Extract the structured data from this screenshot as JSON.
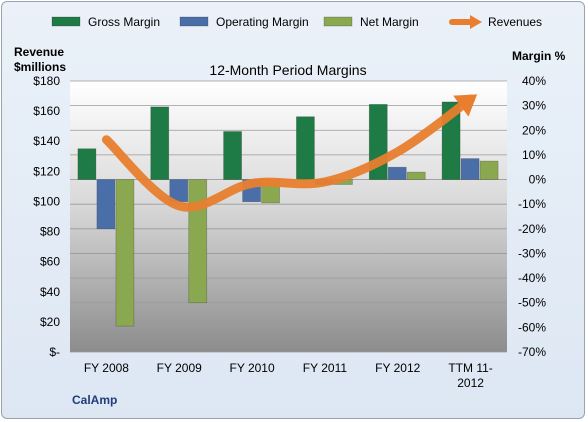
{
  "chart_data": {
    "type": "bar",
    "title": "12-Month Period Margins",
    "company": "CalAmp",
    "left_axis_title": [
      "Revenue",
      "$millions"
    ],
    "right_axis_title": "Margin %",
    "categories": [
      [
        "FY 2008"
      ],
      [
        "FY 2009"
      ],
      [
        "FY 2010"
      ],
      [
        "FY 2011"
      ],
      [
        "FY 2012"
      ],
      [
        "TTM 11-",
        "2012"
      ]
    ],
    "left_ylim": [
      0,
      180
    ],
    "left_ticks": [
      "$180",
      "$160",
      "$140",
      "$120",
      "$100",
      "$80",
      "$60",
      "$40",
      "$20",
      "$-"
    ],
    "right_ylim": [
      -70,
      40
    ],
    "right_ticks": [
      "40%",
      "30%",
      "20%",
      "10%",
      "0%",
      "-10%",
      "-20%",
      "-30%",
      "-40%",
      "-50%",
      "-60%",
      "-70%"
    ],
    "series": [
      {
        "name": "Gross Margin",
        "axis": "right",
        "kind": "bar",
        "color": "#1e7b45",
        "values": [
          12.5,
          29.5,
          19.5,
          25.5,
          30.5,
          31.5
        ]
      },
      {
        "name": "Operating Margin",
        "axis": "right",
        "kind": "bar",
        "color": "#4a6fa8",
        "values": [
          -20,
          -9,
          -9,
          -2,
          5,
          8.5
        ]
      },
      {
        "name": "Net Margin",
        "axis": "right",
        "kind": "bar",
        "color": "#8aa850",
        "values": [
          -59.5,
          -50,
          -9.5,
          -2,
          3,
          7.5
        ]
      },
      {
        "name": "Revenues",
        "axis": "left",
        "kind": "line",
        "color": "#e87e2e",
        "values": [
          141,
          97,
          112,
          113,
          133,
          168
        ]
      }
    ],
    "grid": true,
    "legend_position": "top"
  }
}
